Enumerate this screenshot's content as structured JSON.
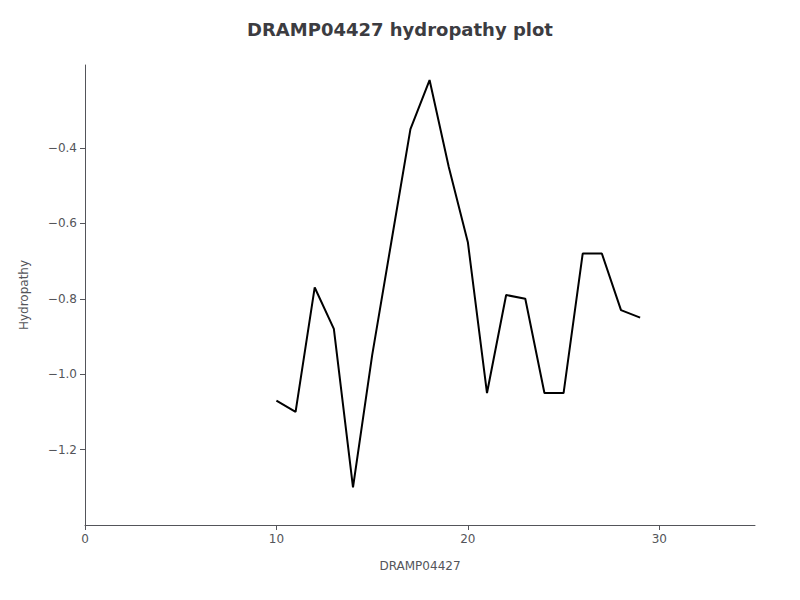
{
  "chart_data": {
    "type": "line",
    "title": "DRAMP04427 hydropathy plot",
    "xlabel": "DRAMP04427",
    "ylabel": "Hydropathy",
    "x": [
      10,
      11,
      12,
      13,
      14,
      15,
      16,
      17,
      18,
      19,
      20,
      21,
      22,
      23,
      24,
      25,
      26,
      27,
      28,
      29
    ],
    "values": [
      -1.07,
      -1.1,
      -0.77,
      -0.88,
      -1.3,
      -0.95,
      -0.65,
      -0.35,
      -0.22,
      -0.45,
      -0.65,
      -1.05,
      -0.79,
      -0.8,
      -1.05,
      -1.05,
      -0.68,
      -0.68,
      -0.83,
      -0.85
    ],
    "color": "#000000",
    "xlim": [
      0,
      35
    ],
    "xticks": [
      0,
      10,
      20,
      30
    ],
    "ylim": [
      -1.4,
      -0.18
    ],
    "yticks": [
      {
        "value": -1.2,
        "label": "−1.2"
      },
      {
        "value": -1.0,
        "label": "−1.0"
      },
      {
        "value": -0.8,
        "label": "−0.8"
      },
      {
        "value": -0.6,
        "label": "−0.6"
      },
      {
        "value": -0.4,
        "label": "−0.4"
      }
    ],
    "grid": false
  }
}
